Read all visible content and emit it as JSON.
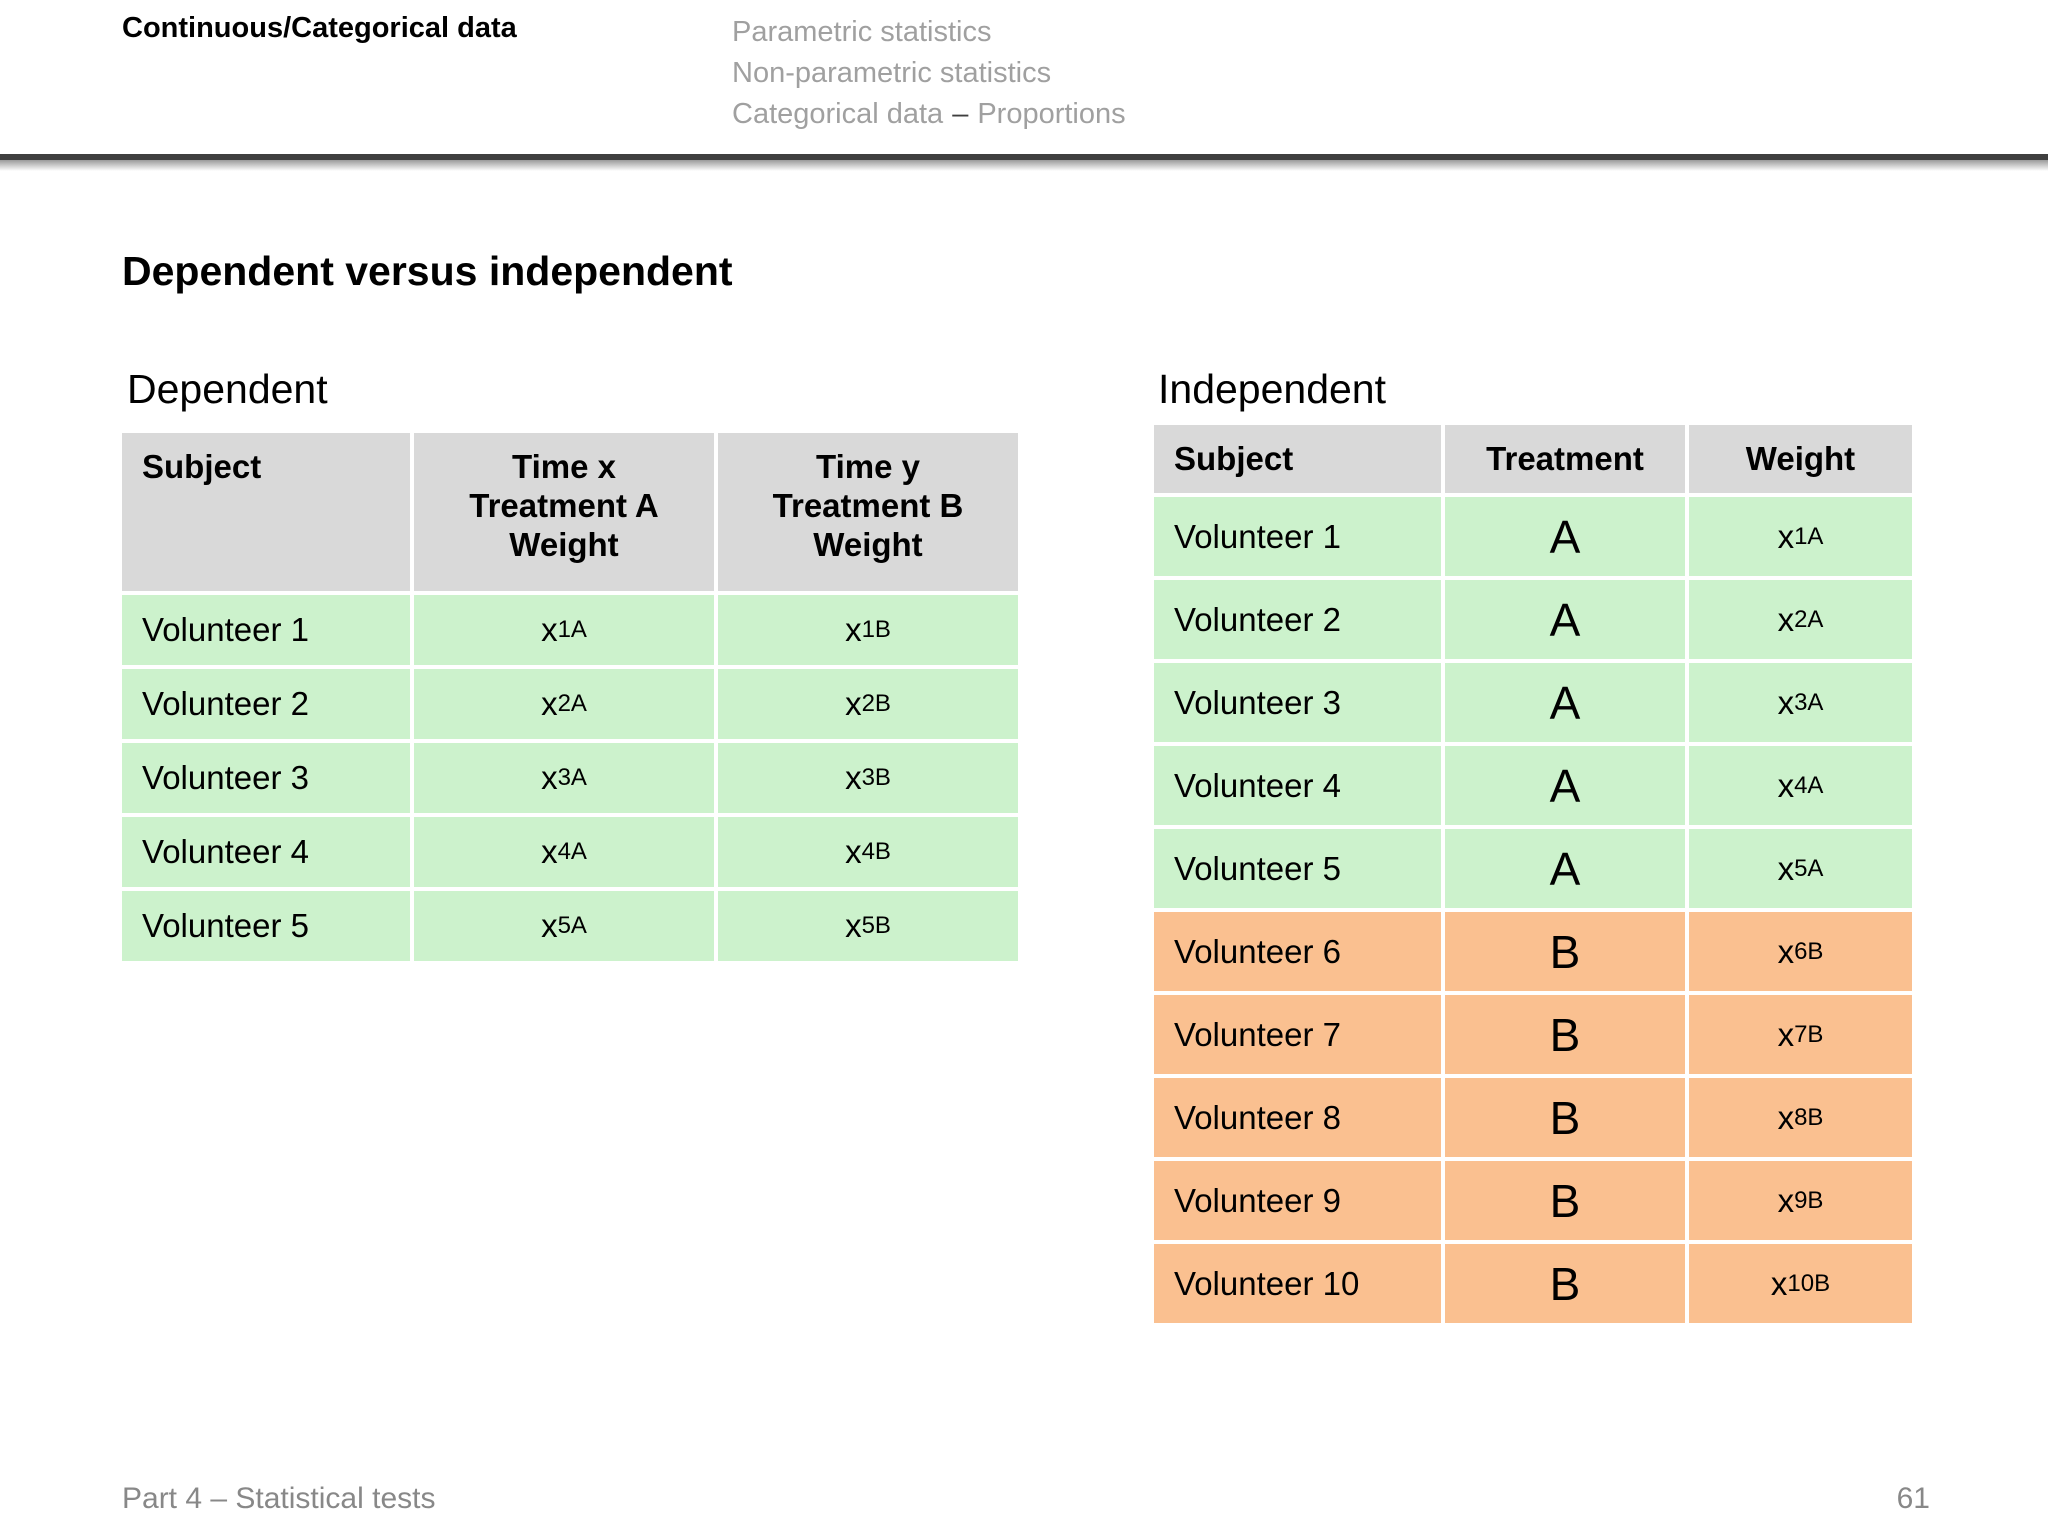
{
  "colors": {
    "table_header_fill": "#d9d9d9",
    "green_fill": "#ccf2cc",
    "orange_fill": "#fac090",
    "nav_muted_text": "#a0a0a0",
    "nav_dash_dark": "#3f3f3f",
    "footer_text": "#888888",
    "divider_dark": "#3f3f3f"
  },
  "top_bar": {
    "section_title": "Continuous/Categorical data",
    "nav_items": [
      "Parametric statistics",
      "Non-parametric statistics"
    ],
    "nav_categorical": {
      "text": "Categorical data",
      "dash": "–",
      "suffix": "Proportions"
    }
  },
  "title": "Dependent versus independent",
  "dependent_table": {
    "label": "Dependent",
    "headers": [
      "Subject",
      "Time x\nTreatment A\nWeight",
      "Time y\nTreatment B\nWeight"
    ],
    "rows": [
      {
        "subject": "Volunteer 1",
        "a_base": "x",
        "a_sub": "1A",
        "b_base": "x",
        "b_sub": "1B"
      },
      {
        "subject": "Volunteer 2",
        "a_base": "x",
        "a_sub": "2A",
        "b_base": "x",
        "b_sub": "2B"
      },
      {
        "subject": "Volunteer 3",
        "a_base": "x",
        "a_sub": "3A",
        "b_base": "x",
        "b_sub": "3B"
      },
      {
        "subject": "Volunteer 4",
        "a_base": "x",
        "a_sub": "4A",
        "b_base": "x",
        "b_sub": "4B"
      },
      {
        "subject": "Volunteer 5",
        "a_base": "x",
        "a_sub": "5A",
        "b_base": "x",
        "b_sub": "5B"
      }
    ]
  },
  "independent_table": {
    "label": "Independent",
    "headers": [
      "Subject",
      "Treatment",
      "Weight"
    ],
    "rows": [
      {
        "subject": "Volunteer 1",
        "treatment": "A",
        "group": "A",
        "w_base": "x",
        "w_sub": "1A"
      },
      {
        "subject": "Volunteer 2",
        "treatment": "A",
        "group": "A",
        "w_base": "x",
        "w_sub": "2A"
      },
      {
        "subject": "Volunteer 3",
        "treatment": "A",
        "group": "A",
        "w_base": "x",
        "w_sub": "3A"
      },
      {
        "subject": "Volunteer 4",
        "treatment": "A",
        "group": "A",
        "w_base": "x",
        "w_sub": "4A"
      },
      {
        "subject": "Volunteer 5",
        "treatment": "A",
        "group": "A",
        "w_base": "x",
        "w_sub": "5A"
      },
      {
        "subject": "Volunteer 6",
        "treatment": "B",
        "group": "B",
        "w_base": "x",
        "w_sub": "6B"
      },
      {
        "subject": "Volunteer 7",
        "treatment": "B",
        "group": "B",
        "w_base": "x",
        "w_sub": "7B"
      },
      {
        "subject": "Volunteer 8",
        "treatment": "B",
        "group": "B",
        "w_base": "x",
        "w_sub": "8B"
      },
      {
        "subject": "Volunteer 9",
        "treatment": "B",
        "group": "B",
        "w_base": "x",
        "w_sub": "9B"
      },
      {
        "subject": "Volunteer 10",
        "treatment": "B",
        "group": "B",
        "w_base": "x",
        "w_sub": "10B"
      }
    ]
  },
  "footer": {
    "left": "Part 4 – Statistical tests",
    "page_number": "61"
  }
}
